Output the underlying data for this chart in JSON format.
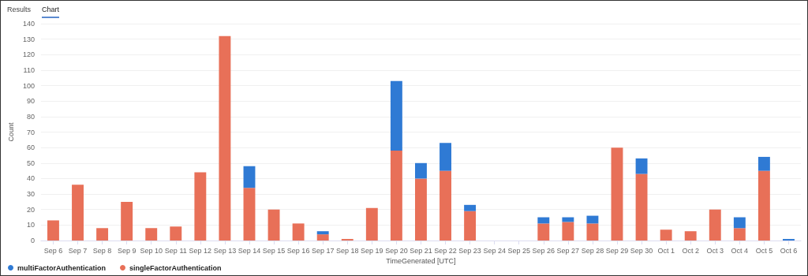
{
  "chart_data": {
    "type": "bar",
    "stacked": true,
    "xlabel": "TimeGenerated [UTC]",
    "ylabel": "Count",
    "annotations": [
      "Results",
      "Chart"
    ],
    "categories": [
      "Sep 6",
      "Sep 7",
      "Sep 8",
      "Sep 9",
      "Sep 10",
      "Sep 11",
      "Sep 12",
      "Sep 13",
      "Sep 14",
      "Sep 15",
      "Sep 16",
      "Sep 17",
      "Sep 18",
      "Sep 19",
      "Sep 20",
      "Sep 21",
      "Sep 22",
      "Sep 23",
      "Sep 24",
      "Sep 25",
      "Sep 26",
      "Sep 27",
      "Sep 28",
      "Sep 29",
      "Sep 30",
      "Oct 1",
      "Oct 2",
      "Oct 3",
      "Oct 4",
      "Oct 5",
      "Oct 6"
    ],
    "series": [
      {
        "name": "singleFactorAuthentication",
        "color": "#e87058",
        "values": [
          13,
          36,
          8,
          25,
          8,
          9,
          44,
          132,
          34,
          20,
          11,
          4,
          1,
          21,
          58,
          40,
          45,
          19,
          null,
          null,
          11,
          12,
          11,
          60,
          43,
          7,
          6,
          20,
          8,
          45,
          null
        ]
      },
      {
        "name": "multiFactorAuthentication",
        "color": "#2f7ad4",
        "values": [
          null,
          null,
          null,
          null,
          null,
          null,
          null,
          null,
          14,
          null,
          null,
          2,
          null,
          null,
          45,
          10,
          18,
          4,
          null,
          null,
          4,
          3,
          5,
          null,
          10,
          null,
          null,
          null,
          7,
          9,
          1
        ]
      }
    ],
    "ylim": [
      0,
      140
    ],
    "yticks": [
      0,
      10,
      20,
      30,
      40,
      50,
      60,
      70,
      80,
      90,
      100,
      110,
      120,
      130,
      140
    ],
    "grid": "y",
    "legend": "bottom left"
  }
}
